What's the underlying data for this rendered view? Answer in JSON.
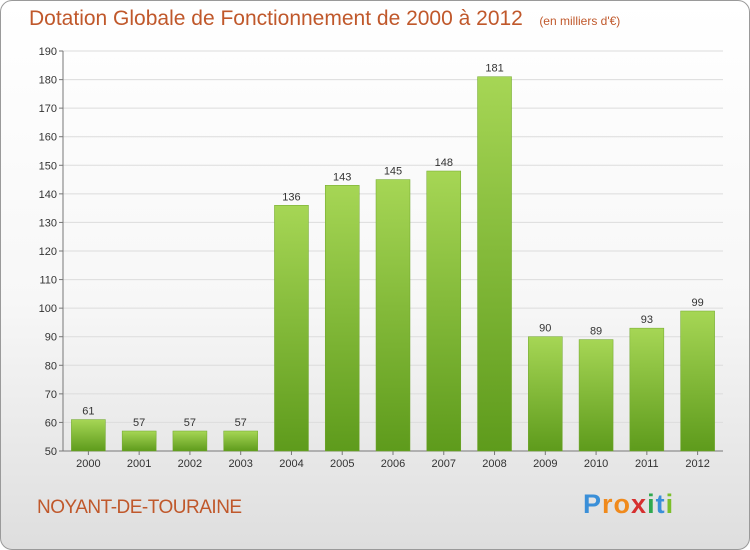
{
  "title": "Dotation Globale de Fonctionnement de 2000 à 2012",
  "subtitle": "(en milliers d'€)",
  "commune": "NOYANT-DE-TOURAINE",
  "logo": {
    "letters": [
      "P",
      "r",
      "o",
      "x",
      "i",
      "t",
      "i"
    ],
    "colors": [
      "#3a8fd8",
      "#f08a1c",
      "#f08a1c",
      "#d62f2f",
      "#2fa84f",
      "#3a8fd8",
      "#7cbf2a"
    ]
  },
  "colors": {
    "bar_top": "#a6d655",
    "bar_bottom": "#5e9b1c",
    "text": "#c0582b",
    "grid": "#dcdcdc"
  },
  "chart_data": {
    "type": "bar",
    "categories": [
      "2000",
      "2001",
      "2002",
      "2003",
      "2004",
      "2005",
      "2006",
      "2007",
      "2008",
      "2009",
      "2010",
      "2011",
      "2012"
    ],
    "values": [
      61,
      57,
      57,
      57,
      136,
      143,
      145,
      148,
      181,
      90,
      89,
      93,
      99
    ],
    "ylim": [
      50,
      190
    ],
    "yticks": [
      50,
      60,
      70,
      80,
      90,
      100,
      110,
      120,
      130,
      140,
      150,
      160,
      170,
      180,
      190
    ],
    "grid": true,
    "xlabel": "",
    "ylabel": ""
  }
}
